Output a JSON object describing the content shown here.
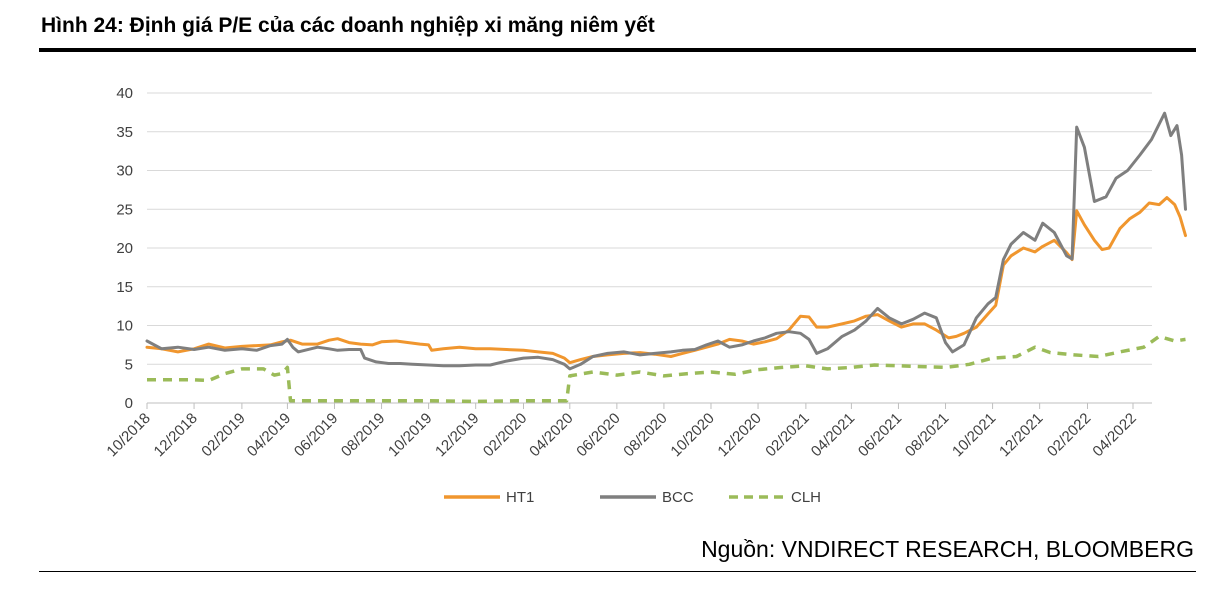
{
  "title": "Hình 24: Định giá P/E của các doanh nghiệp xi măng niêm yết",
  "source": "Nguồn: VNDIRECT RESEARCH, BLOOMBERG",
  "chart_data": {
    "type": "line",
    "x_axis": {
      "start": "2018-10",
      "end": "2022-04",
      "tick_labels": [
        "10/2018",
        "12/2018",
        "02/2019",
        "04/2019",
        "06/2019",
        "08/2019",
        "10/2019",
        "12/2019",
        "02/2020",
        "04/2020",
        "06/2020",
        "08/2020",
        "10/2020",
        "12/2020",
        "02/2021",
        "04/2021",
        "06/2021",
        "08/2021",
        "10/2021",
        "12/2021",
        "02/2022",
        "04/2022"
      ]
    },
    "y_axis": {
      "ylim": [
        0,
        40
      ],
      "ticks": [
        0,
        5,
        10,
        15,
        20,
        25,
        30,
        35,
        40
      ]
    },
    "grid": true,
    "legend_position": "bottom",
    "series": [
      {
        "name": "HT1",
        "color": "#F0962E",
        "style": "solid",
        "points": [
          [
            "2018-10-01",
            7.2
          ],
          [
            "2018-10-20",
            7.0
          ],
          [
            "2018-11-10",
            6.6
          ],
          [
            "2018-12-01",
            7.0
          ],
          [
            "2018-12-20",
            7.6
          ],
          [
            "2019-01-10",
            7.1
          ],
          [
            "2019-02-01",
            7.3
          ],
          [
            "2019-02-20",
            7.4
          ],
          [
            "2019-03-10",
            7.5
          ],
          [
            "2019-03-25",
            7.9
          ],
          [
            "2019-04-05",
            8.1
          ],
          [
            "2019-04-20",
            7.6
          ],
          [
            "2019-05-10",
            7.6
          ],
          [
            "2019-05-25",
            8.1
          ],
          [
            "2019-06-05",
            8.3
          ],
          [
            "2019-06-20",
            7.8
          ],
          [
            "2019-07-05",
            7.6
          ],
          [
            "2019-07-20",
            7.5
          ],
          [
            "2019-08-01",
            7.9
          ],
          [
            "2019-08-20",
            8.0
          ],
          [
            "2019-09-05",
            7.8
          ],
          [
            "2019-09-20",
            7.6
          ],
          [
            "2019-10-01",
            7.5
          ],
          [
            "2019-10-05",
            6.8
          ],
          [
            "2019-10-20",
            7.0
          ],
          [
            "2019-11-10",
            7.2
          ],
          [
            "2019-12-01",
            7.0
          ],
          [
            "2019-12-20",
            7.0
          ],
          [
            "2020-01-10",
            6.9
          ],
          [
            "2020-02-01",
            6.8
          ],
          [
            "2020-02-20",
            6.6
          ],
          [
            "2020-03-10",
            6.4
          ],
          [
            "2020-03-25",
            5.8
          ],
          [
            "2020-04-01",
            5.2
          ],
          [
            "2020-04-15",
            5.6
          ],
          [
            "2020-05-01",
            6.0
          ],
          [
            "2020-05-20",
            6.2
          ],
          [
            "2020-06-10",
            6.4
          ],
          [
            "2020-07-01",
            6.5
          ],
          [
            "2020-07-20",
            6.3
          ],
          [
            "2020-08-10",
            6.0
          ],
          [
            "2020-08-25",
            6.4
          ],
          [
            "2020-09-10",
            6.8
          ],
          [
            "2020-09-25",
            7.2
          ],
          [
            "2020-10-10",
            7.6
          ],
          [
            "2020-10-25",
            8.2
          ],
          [
            "2020-11-10",
            8.0
          ],
          [
            "2020-11-25",
            7.6
          ],
          [
            "2020-12-10",
            7.9
          ],
          [
            "2020-12-25",
            8.3
          ],
          [
            "2021-01-10",
            9.4
          ],
          [
            "2021-01-25",
            11.2
          ],
          [
            "2021-02-05",
            11.1
          ],
          [
            "2021-02-15",
            9.8
          ],
          [
            "2021-03-01",
            9.8
          ],
          [
            "2021-03-20",
            10.2
          ],
          [
            "2021-04-05",
            10.6
          ],
          [
            "2021-04-20",
            11.2
          ],
          [
            "2021-05-05",
            11.4
          ],
          [
            "2021-05-20",
            10.6
          ],
          [
            "2021-06-05",
            9.8
          ],
          [
            "2021-06-20",
            10.2
          ],
          [
            "2021-07-05",
            10.2
          ],
          [
            "2021-07-20",
            9.4
          ],
          [
            "2021-08-05",
            8.4
          ],
          [
            "2021-08-15",
            8.6
          ],
          [
            "2021-08-25",
            9.0
          ],
          [
            "2021-09-10",
            9.8
          ],
          [
            "2021-09-25",
            11.5
          ],
          [
            "2021-10-05",
            12.6
          ],
          [
            "2021-10-15",
            17.8
          ],
          [
            "2021-10-25",
            19.0
          ],
          [
            "2021-11-10",
            20.0
          ],
          [
            "2021-11-25",
            19.5
          ],
          [
            "2021-12-05",
            20.2
          ],
          [
            "2021-12-20",
            21.0
          ],
          [
            "2022-01-05",
            19.4
          ],
          [
            "2022-01-12",
            18.5
          ],
          [
            "2022-01-18",
            24.8
          ],
          [
            "2022-01-28",
            23.0
          ],
          [
            "2022-02-10",
            21.0
          ],
          [
            "2022-02-20",
            19.8
          ],
          [
            "2022-03-01",
            20.0
          ],
          [
            "2022-03-15",
            22.5
          ],
          [
            "2022-03-28",
            23.8
          ],
          [
            "2022-04-10",
            24.6
          ],
          [
            "2022-04-22",
            25.8
          ],
          [
            "2022-05-05",
            25.6
          ],
          [
            "2022-05-15",
            26.5
          ],
          [
            "2022-05-25",
            25.6
          ],
          [
            "2022-06-01",
            24.0
          ],
          [
            "2022-06-08",
            21.6
          ]
        ]
      },
      {
        "name": "BCC",
        "color": "#7F7F7F",
        "style": "solid",
        "points": [
          [
            "2018-10-01",
            8.0
          ],
          [
            "2018-10-20",
            7.0
          ],
          [
            "2018-11-10",
            7.2
          ],
          [
            "2018-12-01",
            6.9
          ],
          [
            "2018-12-20",
            7.2
          ],
          [
            "2019-01-10",
            6.8
          ],
          [
            "2019-02-01",
            7.0
          ],
          [
            "2019-02-20",
            6.8
          ],
          [
            "2019-03-10",
            7.4
          ],
          [
            "2019-03-25",
            7.6
          ],
          [
            "2019-04-01",
            8.2
          ],
          [
            "2019-04-08",
            7.2
          ],
          [
            "2019-04-15",
            6.6
          ],
          [
            "2019-05-10",
            7.2
          ],
          [
            "2019-05-25",
            7.0
          ],
          [
            "2019-06-05",
            6.8
          ],
          [
            "2019-06-20",
            6.9
          ],
          [
            "2019-07-05",
            6.9
          ],
          [
            "2019-07-10",
            5.8
          ],
          [
            "2019-07-25",
            5.3
          ],
          [
            "2019-08-10",
            5.1
          ],
          [
            "2019-08-25",
            5.1
          ],
          [
            "2019-09-10",
            5.0
          ],
          [
            "2019-10-01",
            4.9
          ],
          [
            "2019-10-20",
            4.8
          ],
          [
            "2019-11-10",
            4.8
          ],
          [
            "2019-12-01",
            4.9
          ],
          [
            "2019-12-20",
            4.9
          ],
          [
            "2020-01-10",
            5.4
          ],
          [
            "2020-02-01",
            5.8
          ],
          [
            "2020-02-20",
            5.9
          ],
          [
            "2020-03-10",
            5.6
          ],
          [
            "2020-03-25",
            5.0
          ],
          [
            "2020-04-01",
            4.4
          ],
          [
            "2020-04-15",
            5.0
          ],
          [
            "2020-05-01",
            6.0
          ],
          [
            "2020-05-20",
            6.4
          ],
          [
            "2020-06-10",
            6.6
          ],
          [
            "2020-07-01",
            6.2
          ],
          [
            "2020-07-20",
            6.4
          ],
          [
            "2020-08-10",
            6.6
          ],
          [
            "2020-08-25",
            6.8
          ],
          [
            "2020-09-10",
            6.9
          ],
          [
            "2020-09-25",
            7.5
          ],
          [
            "2020-10-10",
            8.0
          ],
          [
            "2020-10-25",
            7.2
          ],
          [
            "2020-11-10",
            7.5
          ],
          [
            "2020-11-25",
            8.0
          ],
          [
            "2020-12-10",
            8.4
          ],
          [
            "2020-12-25",
            9.0
          ],
          [
            "2021-01-10",
            9.2
          ],
          [
            "2021-01-25",
            9.0
          ],
          [
            "2021-02-05",
            8.2
          ],
          [
            "2021-02-15",
            6.4
          ],
          [
            "2021-03-01",
            7.0
          ],
          [
            "2021-03-20",
            8.6
          ],
          [
            "2021-04-05",
            9.4
          ],
          [
            "2021-04-20",
            10.6
          ],
          [
            "2021-05-05",
            12.2
          ],
          [
            "2021-05-20",
            11.0
          ],
          [
            "2021-06-05",
            10.2
          ],
          [
            "2021-06-20",
            10.8
          ],
          [
            "2021-07-05",
            11.6
          ],
          [
            "2021-07-20",
            11.0
          ],
          [
            "2021-08-01",
            7.8
          ],
          [
            "2021-08-10",
            6.6
          ],
          [
            "2021-08-25",
            7.5
          ],
          [
            "2021-09-10",
            11.0
          ],
          [
            "2021-09-25",
            12.8
          ],
          [
            "2021-10-05",
            13.6
          ],
          [
            "2021-10-15",
            18.5
          ],
          [
            "2021-10-25",
            20.5
          ],
          [
            "2021-11-10",
            22.0
          ],
          [
            "2021-11-25",
            21.0
          ],
          [
            "2021-12-05",
            23.2
          ],
          [
            "2021-12-20",
            22.0
          ],
          [
            "2022-01-05",
            19.0
          ],
          [
            "2022-01-12",
            18.6
          ],
          [
            "2022-01-18",
            35.6
          ],
          [
            "2022-01-28",
            33.0
          ],
          [
            "2022-02-10",
            26.0
          ],
          [
            "2022-02-25",
            26.6
          ],
          [
            "2022-03-10",
            29.0
          ],
          [
            "2022-03-25",
            30.0
          ],
          [
            "2022-04-10",
            32.0
          ],
          [
            "2022-04-25",
            34.0
          ],
          [
            "2022-05-05",
            36.0
          ],
          [
            "2022-05-12",
            37.4
          ],
          [
            "2022-05-20",
            34.5
          ],
          [
            "2022-05-28",
            35.8
          ],
          [
            "2022-06-03",
            32.0
          ],
          [
            "2022-06-08",
            25.0
          ]
        ]
      },
      {
        "name": "CLH",
        "color": "#9BBB59",
        "style": "dashed",
        "points": [
          [
            "2018-10-01",
            3.0
          ],
          [
            "2018-11-10",
            3.0
          ],
          [
            "2018-12-01",
            3.0
          ],
          [
            "2018-12-20",
            2.9
          ],
          [
            "2019-01-10",
            3.8
          ],
          [
            "2019-02-01",
            4.4
          ],
          [
            "2019-03-01",
            4.4
          ],
          [
            "2019-03-15",
            3.6
          ],
          [
            "2019-03-25",
            3.8
          ],
          [
            "2019-04-01",
            4.6
          ],
          [
            "2019-04-05",
            0.3
          ],
          [
            "2019-06-01",
            0.3
          ],
          [
            "2019-08-01",
            0.3
          ],
          [
            "2019-10-01",
            0.3
          ],
          [
            "2019-12-01",
            0.2
          ],
          [
            "2020-02-01",
            0.3
          ],
          [
            "2020-03-28",
            0.3
          ],
          [
            "2020-04-01",
            3.5
          ],
          [
            "2020-05-01",
            4.0
          ],
          [
            "2020-06-01",
            3.6
          ],
          [
            "2020-07-01",
            4.0
          ],
          [
            "2020-08-01",
            3.5
          ],
          [
            "2020-09-01",
            3.8
          ],
          [
            "2020-10-01",
            4.0
          ],
          [
            "2020-11-01",
            3.7
          ],
          [
            "2020-12-01",
            4.3
          ],
          [
            "2021-01-01",
            4.6
          ],
          [
            "2021-02-01",
            4.8
          ],
          [
            "2021-03-01",
            4.4
          ],
          [
            "2021-04-01",
            4.6
          ],
          [
            "2021-05-01",
            4.9
          ],
          [
            "2021-06-01",
            4.8
          ],
          [
            "2021-07-01",
            4.7
          ],
          [
            "2021-08-01",
            4.6
          ],
          [
            "2021-09-01",
            5.0
          ],
          [
            "2021-10-01",
            5.8
          ],
          [
            "2021-11-01",
            6.0
          ],
          [
            "2021-11-25",
            7.2
          ],
          [
            "2021-12-15",
            6.5
          ],
          [
            "2022-01-15",
            6.2
          ],
          [
            "2022-02-15",
            6.0
          ],
          [
            "2022-03-15",
            6.6
          ],
          [
            "2022-04-15",
            7.2
          ],
          [
            "2022-05-05",
            8.6
          ],
          [
            "2022-05-25",
            8.0
          ],
          [
            "2022-06-08",
            8.2
          ]
        ]
      }
    ]
  }
}
